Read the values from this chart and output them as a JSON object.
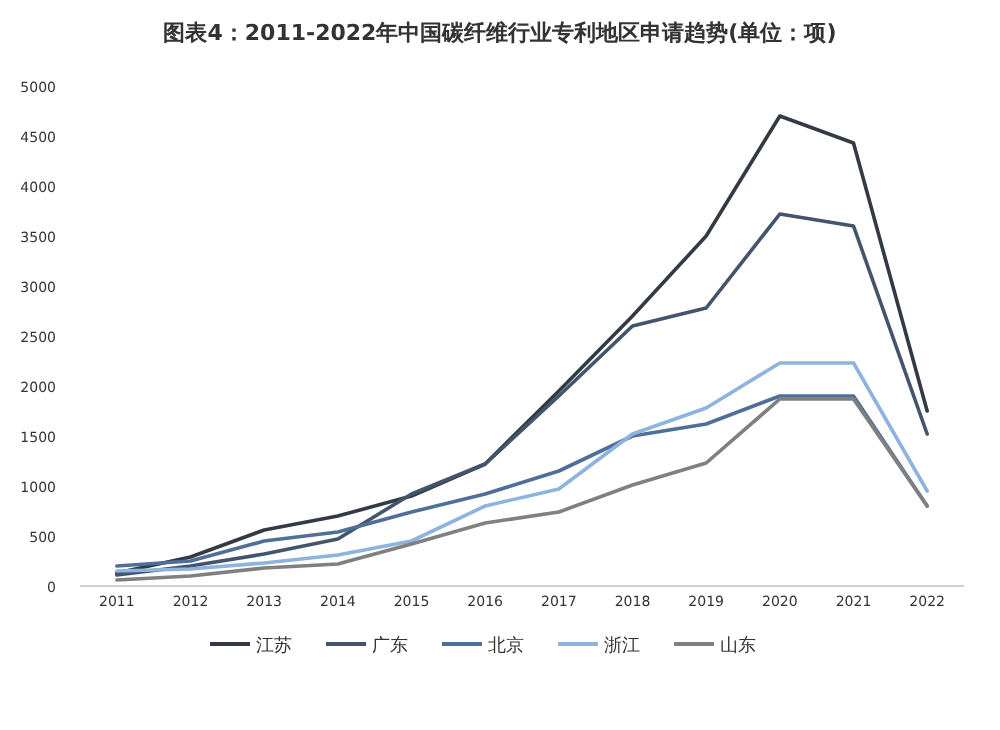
{
  "chart_data": {
    "type": "line",
    "title": "图表4：2011-2022年中国碳纤维行业专利地区申请趋势(单位：项)",
    "categories": [
      "2011",
      "2012",
      "2013",
      "2014",
      "2015",
      "2016",
      "2017",
      "2018",
      "2019",
      "2020",
      "2021",
      "2022"
    ],
    "series": [
      {
        "name": "江苏",
        "color": "#333a44",
        "values": [
          130,
          290,
          560,
          700,
          900,
          1220,
          1950,
          2700,
          3500,
          4700,
          4430,
          1750
        ]
      },
      {
        "name": "广东",
        "color": "#44546a",
        "values": [
          110,
          200,
          320,
          470,
          920,
          1220,
          1900,
          2600,
          2780,
          3720,
          3600,
          1520
        ]
      },
      {
        "name": "北京",
        "color": "#4f6f9a",
        "values": [
          200,
          250,
          450,
          540,
          740,
          920,
          1150,
          1500,
          1620,
          1900,
          1900,
          800
        ]
      },
      {
        "name": "浙江",
        "color": "#8db3de",
        "values": [
          150,
          170,
          230,
          310,
          450,
          800,
          970,
          1520,
          1780,
          2230,
          2230,
          950
        ]
      },
      {
        "name": "山东",
        "color": "#808080",
        "values": [
          60,
          100,
          180,
          220,
          420,
          630,
          740,
          1010,
          1230,
          1870,
          1870,
          800
        ]
      }
    ],
    "ylim": [
      0,
      5000
    ],
    "yticks": [
      0,
      500,
      1000,
      1500,
      2000,
      2500,
      3000,
      3500,
      4000,
      4500,
      5000
    ],
    "legend": "bottom",
    "marker": "none",
    "line_style": "solid",
    "grid": false
  }
}
